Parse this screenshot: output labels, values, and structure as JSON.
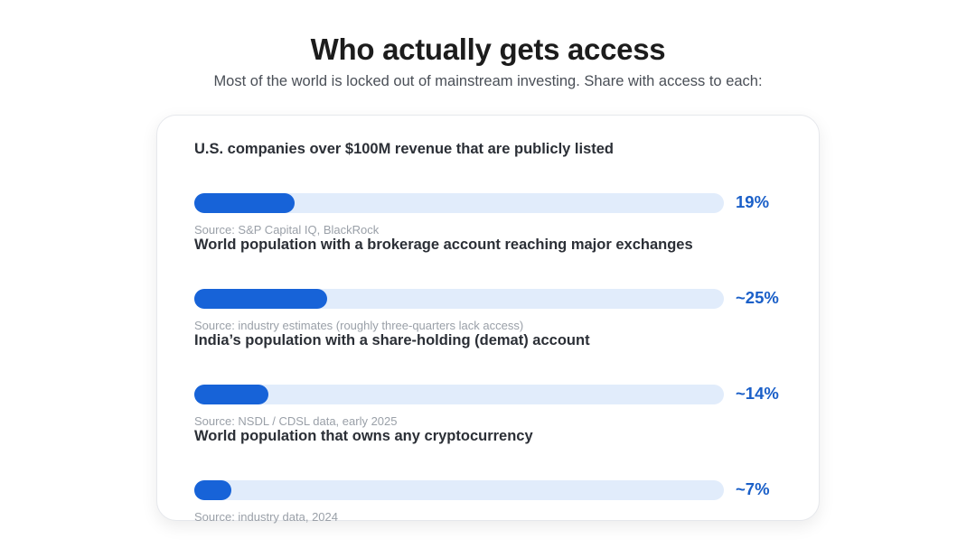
{
  "header": {
    "title": "Who actually gets access",
    "subtitle": "Most of the world is locked out of mainstream investing. Share with access to each:"
  },
  "colors": {
    "bar_fill": "#1763d8",
    "bar_track": "#e1ecfb",
    "value_text": "#1a5fc8"
  },
  "chart_data": {
    "type": "bar",
    "orientation": "horizontal",
    "xlim": [
      0,
      100
    ],
    "categories": [
      "U.S. companies over $100M revenue that are publicly listed",
      "World population with a brokerage account reaching major exchanges",
      "India’s population with a share-holding (demat) account",
      "World population that owns any cryptocurrency"
    ],
    "values": [
      19,
      25,
      14,
      7
    ],
    "value_labels": [
      "19%",
      "~25%",
      "~14%",
      "~7%"
    ],
    "sources": [
      "Source: S&P Capital IQ, BlackRock",
      "Source: industry estimates (roughly three-quarters lack access)",
      "Source: NSDL / CDSL data, early 2025",
      "Source: industry data, 2024"
    ]
  }
}
